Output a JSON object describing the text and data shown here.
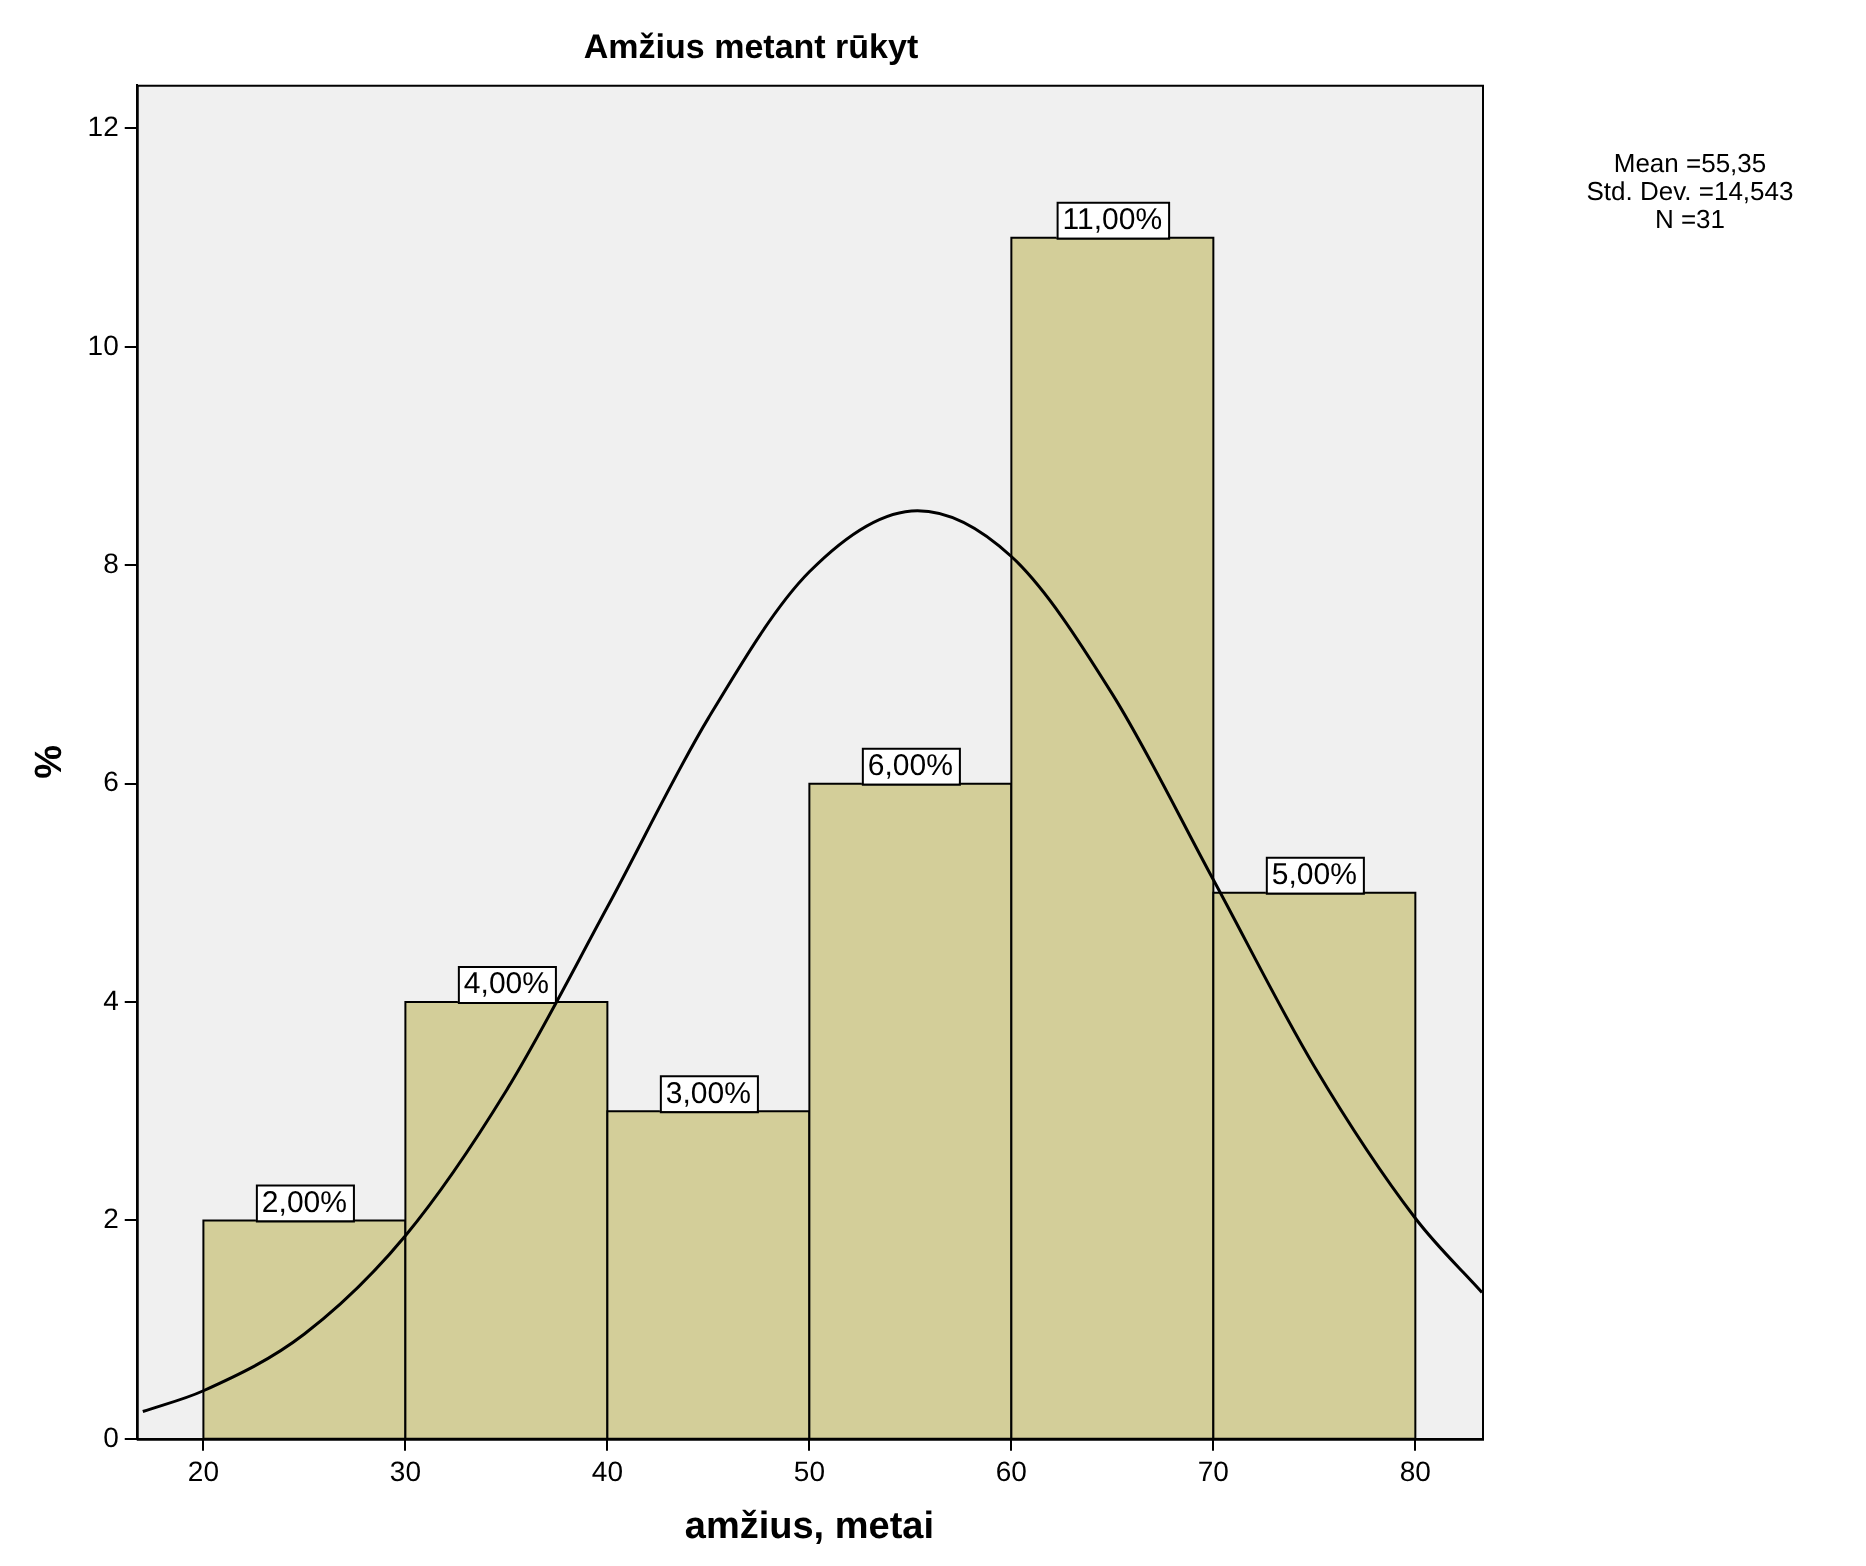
{
  "chart_data": {
    "type": "histogram",
    "title": "Amžius metant rūkyt",
    "xlabel": "amžius, metai",
    "ylabel": "%",
    "bins": [
      20,
      30,
      40,
      50,
      60,
      70,
      80
    ],
    "values": [
      2,
      4,
      3,
      6,
      11,
      5
    ],
    "color": "#d3ce99",
    "value_labels": [
      "2,00%",
      "4,00%",
      "3,00%",
      "6,00%",
      "11,00%",
      "5,00%"
    ],
    "series": [
      {
        "type": "line",
        "color": "#000000",
        "x": [
          17,
          20,
          25,
          30,
          35,
          40,
          45,
          50,
          55.35,
          60,
          65,
          70,
          75,
          80,
          83.3
        ],
        "values": [
          0.25,
          0.44,
          0.96,
          1.86,
          3.19,
          4.87,
          6.6,
          7.94,
          8.5,
          8.08,
          6.82,
          5.12,
          3.41,
          2.02,
          1.34
        ]
      }
    ],
    "xlim": [
      16.7,
      83.3
    ],
    "xticks": [
      20,
      30,
      40,
      50,
      60,
      70,
      80
    ],
    "ylim": [
      0,
      12.4
    ],
    "yticks": [
      0,
      2,
      4,
      6,
      8,
      10,
      12
    ],
    "annotations": [
      "Mean =55,35",
      "Std. Dev. =14,543",
      "N =31"
    ],
    "grid": false,
    "legend": false,
    "marker": "none"
  }
}
